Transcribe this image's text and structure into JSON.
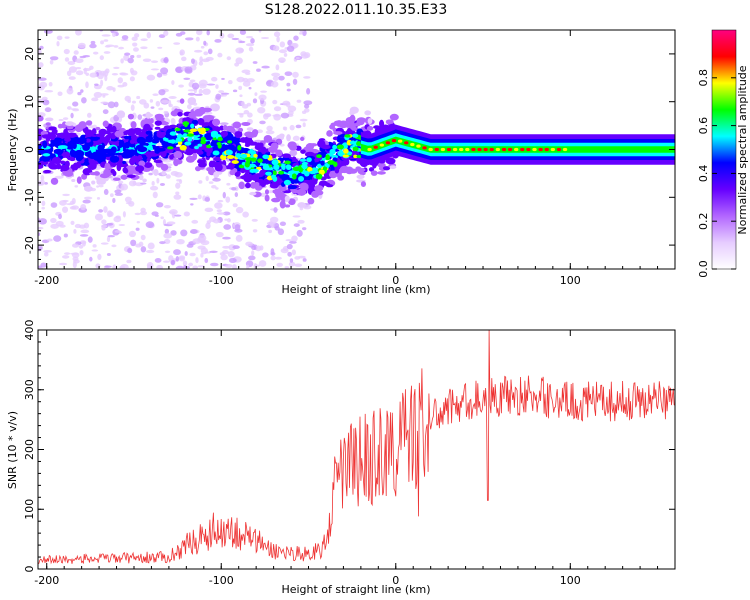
{
  "title": "S128.2022.011.10.35.E33",
  "chart_data": [
    {
      "type": "heatmap",
      "xlabel": "Height of straight line (km)",
      "ylabel": "Frequency (Hz)",
      "xlim": [
        -205,
        160
      ],
      "ylim": [
        -25,
        25
      ],
      "xticks": [
        -200,
        -100,
        0,
        100
      ],
      "yticks": [
        -20,
        -10,
        0,
        10,
        20
      ],
      "colorbar": {
        "label": "Normalized spectral amplitude",
        "range": [
          0,
          1
        ],
        "ticks": [
          0.0,
          0.2,
          0.4,
          0.6,
          0.8
        ],
        "colormap": [
          "#ffffff",
          "#e6ccff",
          "#b266ff",
          "#6600ff",
          "#0000ff",
          "#00ffff",
          "#00ff00",
          "#ffff00",
          "#ff0000",
          "#ff0080"
        ]
      },
      "ridge": {
        "x": [
          -200,
          -150,
          -120,
          -100,
          -80,
          -60,
          -45,
          -35,
          -25,
          -15,
          0,
          20,
          60,
          100,
          160
        ],
        "frequency": [
          0,
          0,
          3,
          1,
          -3,
          -5,
          -4,
          -1,
          1,
          0,
          2,
          0,
          0,
          0,
          0
        ]
      }
    },
    {
      "type": "line",
      "xlabel": "Height of straight line (km)",
      "ylabel": "SNR (10 * v/v)",
      "xlim": [
        -205,
        160
      ],
      "ylim": [
        0,
        400
      ],
      "xticks": [
        -200,
        -100,
        0,
        100
      ],
      "yticks": [
        0,
        100,
        200,
        300,
        400
      ],
      "color": "#ee3333",
      "envelope": {
        "x": [
          -205,
          -130,
          -120,
          -100,
          -85,
          -70,
          -50,
          -40,
          -35,
          -30,
          -20,
          -10,
          0,
          10,
          20,
          30,
          40,
          60,
          80,
          100,
          120,
          160
        ],
        "y": [
          15,
          20,
          40,
          70,
          55,
          30,
          25,
          40,
          130,
          170,
          180,
          190,
          200,
          230,
          250,
          270,
          280,
          290,
          290,
          280,
          280,
          285
        ]
      }
    }
  ]
}
